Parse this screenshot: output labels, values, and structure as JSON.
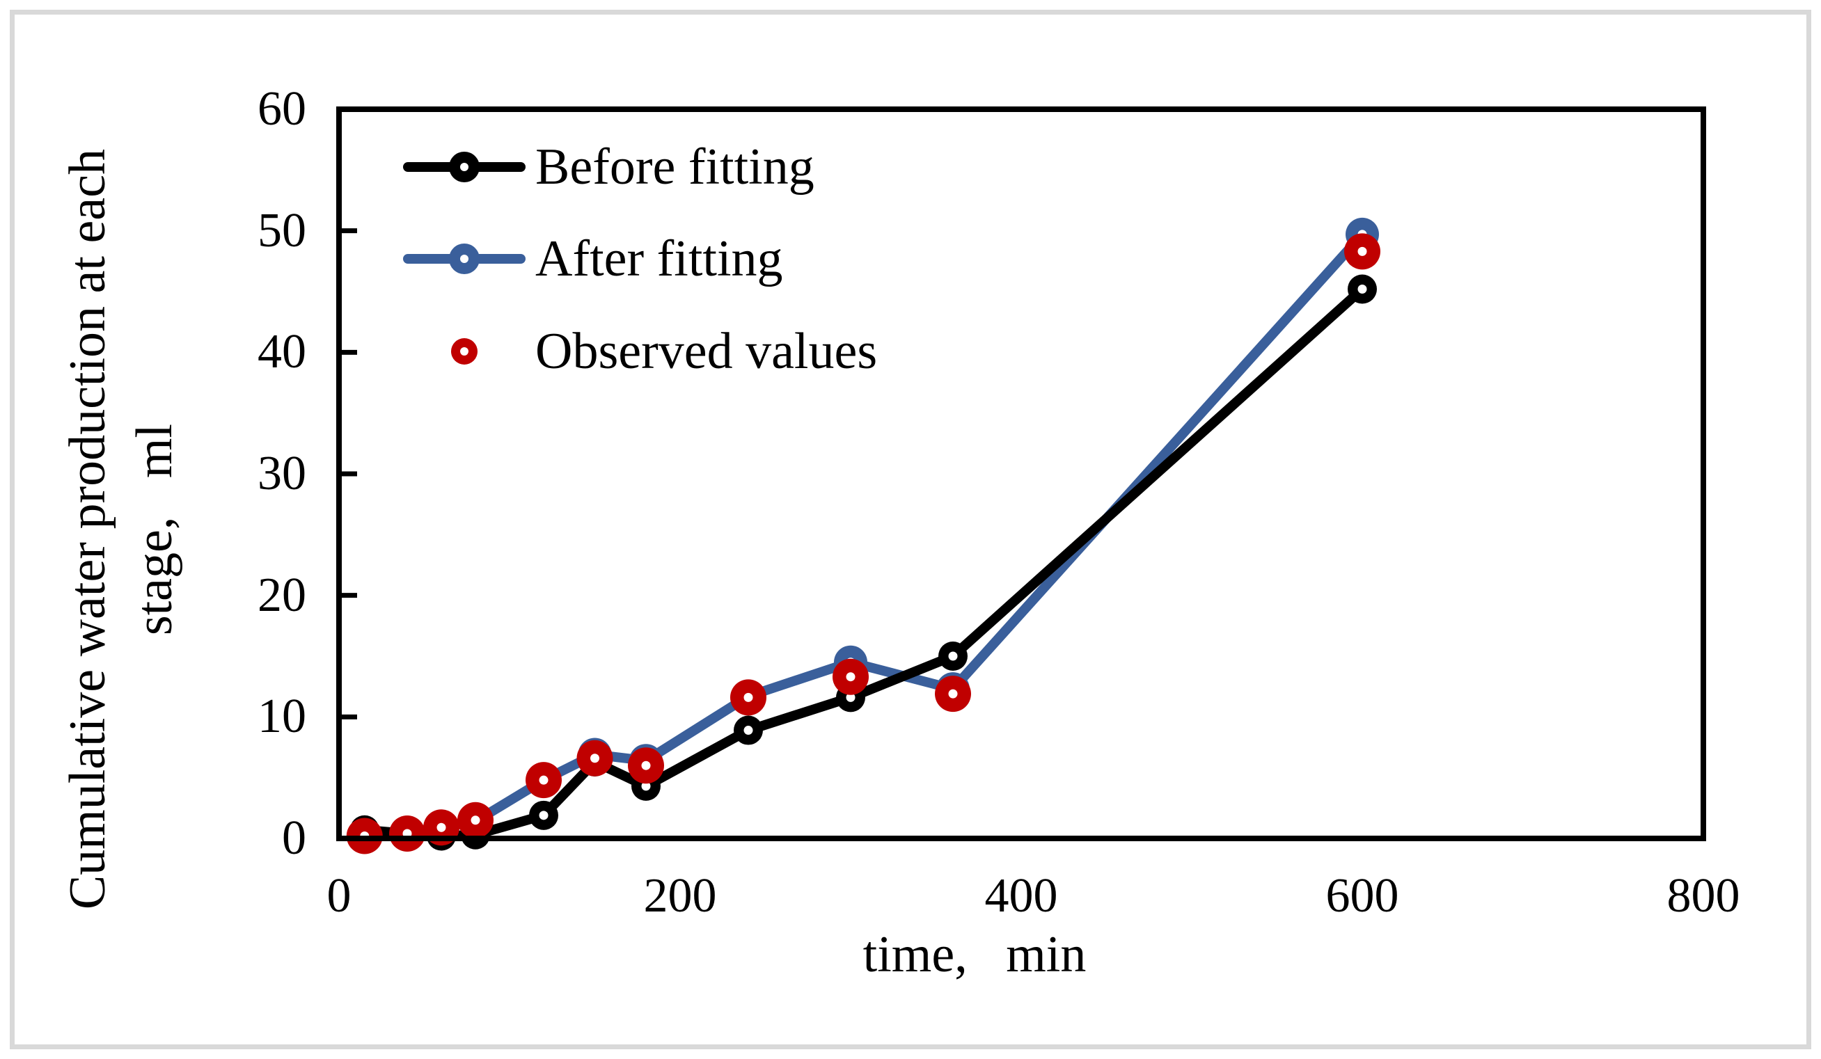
{
  "figure": {
    "background": "#ffffff",
    "border_color": "#d9d9d9"
  },
  "chart_data": {
    "type": "line",
    "title": "",
    "xlabel": "time,   min",
    "ylabel_lines": [
      "Cumulative water production at each",
      "stage,   ml"
    ],
    "xlim": [
      0,
      800
    ],
    "ylim": [
      0,
      60
    ],
    "x_ticks": [
      0,
      200,
      400,
      600,
      800
    ],
    "y_ticks": [
      0,
      10,
      20,
      30,
      40,
      50,
      60
    ],
    "grid": false,
    "legend_position": "top-left-inside",
    "x": [
      15,
      40,
      60,
      80,
      120,
      150,
      180,
      240,
      300,
      360,
      600
    ],
    "series": [
      {
        "name": "Before fitting",
        "color": "#000000",
        "marker": "circle-with-white-dot",
        "has_line": true,
        "marker_size": 21,
        "z": 2,
        "values": [
          0.7,
          0.4,
          0.2,
          0.3,
          1.9,
          6.3,
          4.3,
          8.9,
          11.6,
          15.0,
          45.2
        ]
      },
      {
        "name": "After fitting",
        "color": "#3a5f9b",
        "marker": "circle-with-white-dot",
        "has_line": true,
        "marker_size": 24,
        "z": 1,
        "values": [
          0.3,
          0.5,
          0.9,
          1.4,
          4.8,
          6.9,
          6.4,
          11.7,
          14.5,
          12.3,
          49.7
        ]
      },
      {
        "name": "Observed values",
        "color": "#c00000",
        "marker": "circle-with-white-dot",
        "has_line": false,
        "marker_size": 26,
        "z": 3,
        "values": [
          0.2,
          0.4,
          0.9,
          1.5,
          4.8,
          6.6,
          6.0,
          11.6,
          13.3,
          11.9,
          48.3
        ]
      }
    ]
  }
}
